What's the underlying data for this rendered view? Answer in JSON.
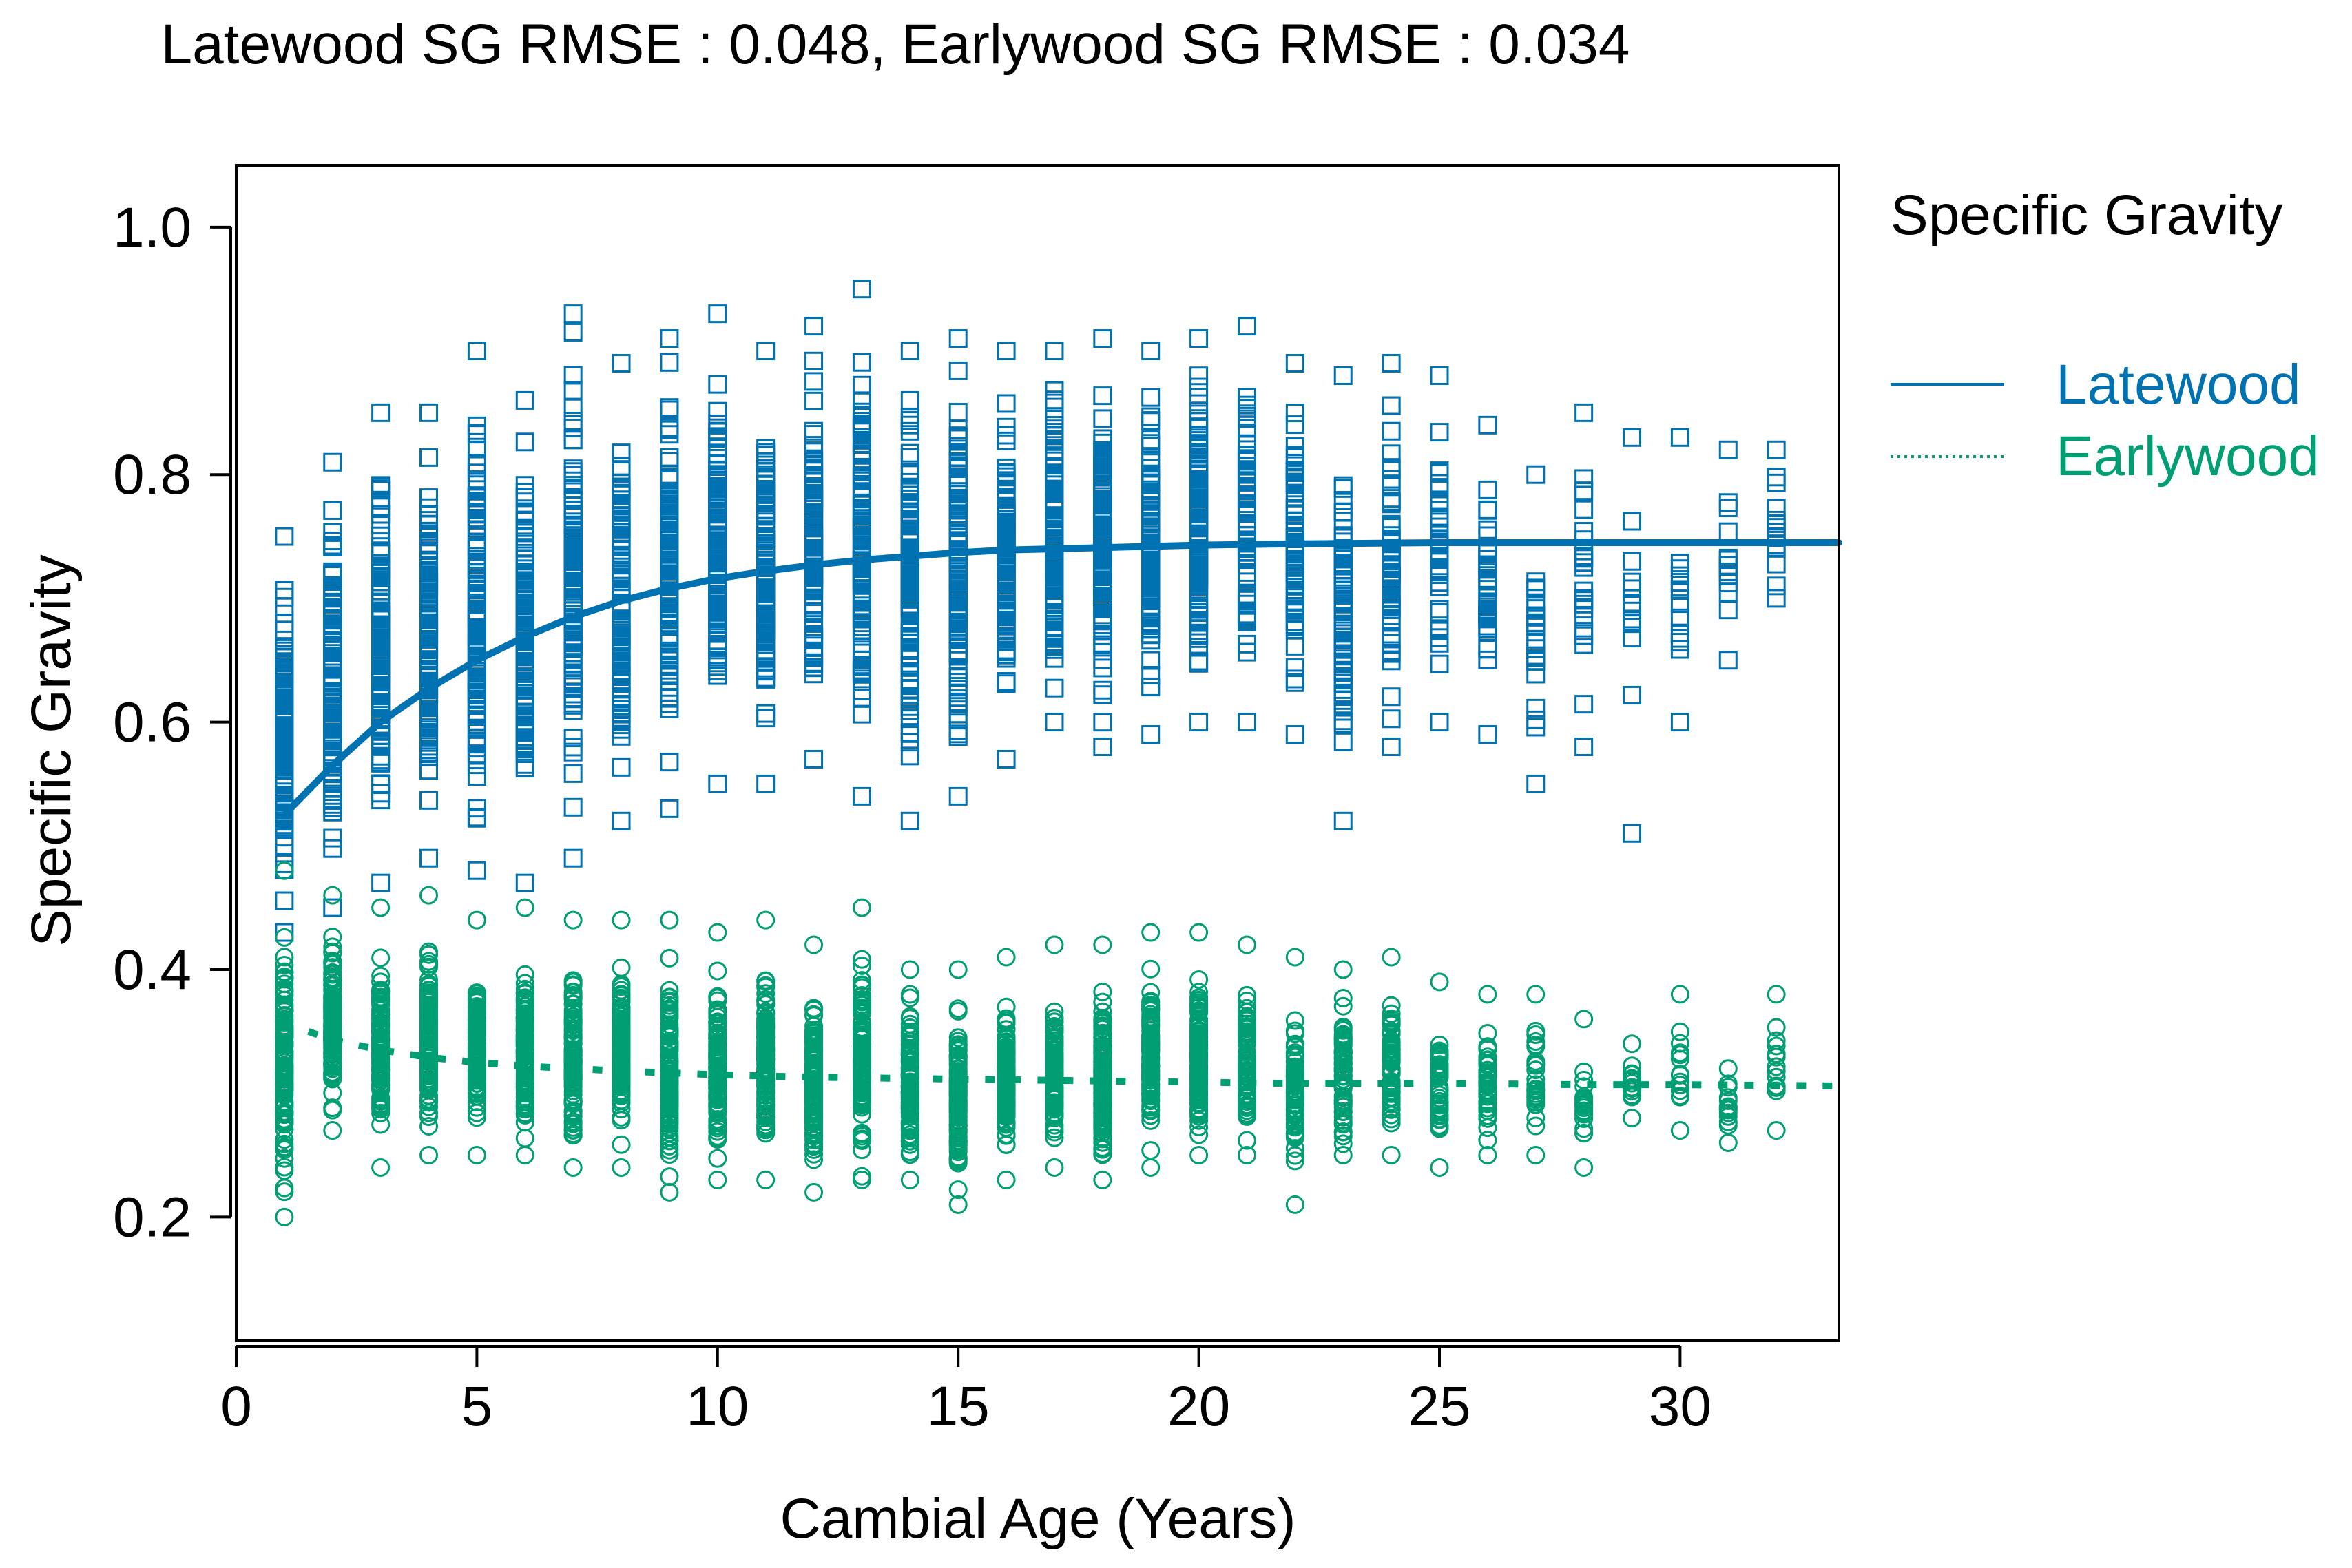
{
  "chart_data": {
    "type": "scatter",
    "title": "Latewood SG RMSE : 0.048, Earlywood SG RMSE : 0.034",
    "xlabel": "Cambial Age (Years)",
    "ylabel": "Specific Gravity",
    "xlim": [
      0,
      33.3
    ],
    "ylim": [
      0.1,
      1.05
    ],
    "xticks": [
      0,
      5,
      10,
      15,
      20,
      25,
      30
    ],
    "yticks": [
      0.2,
      0.4,
      0.6,
      0.8,
      1.0
    ],
    "ytick_labels": [
      "0.2",
      "0.4",
      "0.6",
      "0.8",
      "1.0"
    ],
    "grid": false,
    "legend": {
      "title": "Specific Gravity",
      "placement": "right-outside-top",
      "entries": [
        {
          "name": "Latewood",
          "line": "solid",
          "color": "#0072B2"
        },
        {
          "name": "Earlywood",
          "line": "dotted",
          "color": "#009E73"
        }
      ]
    },
    "colors": {
      "latewood": "#0072B2",
      "earlywood": "#009E73"
    },
    "ages": [
      1,
      2,
      3,
      4,
      5,
      6,
      7,
      8,
      9,
      10,
      11,
      12,
      13,
      14,
      15,
      16,
      17,
      18,
      19,
      20,
      21,
      22,
      23,
      24,
      25,
      26,
      27,
      28,
      29,
      30,
      31,
      32
    ],
    "series": [
      {
        "name": "Latewood",
        "marker": "square",
        "color": "#0072B2",
        "min": [
          0.43,
          0.45,
          0.47,
          0.49,
          0.48,
          0.47,
          0.49,
          0.52,
          0.53,
          0.55,
          0.55,
          0.57,
          0.54,
          0.52,
          0.54,
          0.57,
          0.6,
          0.58,
          0.59,
          0.6,
          0.6,
          0.59,
          0.52,
          0.58,
          0.6,
          0.59,
          0.55,
          0.58,
          0.51,
          0.6,
          0.65,
          0.7
        ],
        "max": [
          0.75,
          0.81,
          0.85,
          0.85,
          0.9,
          0.86,
          0.93,
          0.89,
          0.91,
          0.93,
          0.9,
          0.92,
          0.95,
          0.9,
          0.91,
          0.9,
          0.9,
          0.91,
          0.9,
          0.91,
          0.92,
          0.89,
          0.88,
          0.89,
          0.88,
          0.84,
          0.8,
          0.85,
          0.83,
          0.83,
          0.82,
          0.82
        ],
        "fit": {
          "x": [
            1,
            2,
            3,
            4,
            5,
            6,
            7,
            8,
            9,
            10,
            11,
            12,
            13,
            14,
            15,
            16,
            17,
            18,
            20,
            22,
            25,
            28,
            30,
            33.3
          ],
          "y": [
            0.525,
            0.565,
            0.6,
            0.627,
            0.65,
            0.669,
            0.685,
            0.698,
            0.708,
            0.716,
            0.722,
            0.727,
            0.731,
            0.734,
            0.737,
            0.739,
            0.74,
            0.741,
            0.743,
            0.744,
            0.745,
            0.745,
            0.745,
            0.745
          ]
        }
      },
      {
        "name": "Earlywood",
        "marker": "circle",
        "color": "#009E73",
        "min": [
          0.2,
          0.27,
          0.24,
          0.25,
          0.25,
          0.25,
          0.24,
          0.24,
          0.22,
          0.23,
          0.23,
          0.22,
          0.23,
          0.23,
          0.21,
          0.23,
          0.24,
          0.23,
          0.24,
          0.25,
          0.25,
          0.21,
          0.25,
          0.25,
          0.24,
          0.25,
          0.25,
          0.24,
          0.28,
          0.27,
          0.26,
          0.27
        ],
        "max": [
          0.48,
          0.46,
          0.45,
          0.46,
          0.44,
          0.45,
          0.44,
          0.44,
          0.44,
          0.43,
          0.44,
          0.42,
          0.45,
          0.4,
          0.4,
          0.41,
          0.42,
          0.42,
          0.43,
          0.43,
          0.42,
          0.41,
          0.4,
          0.41,
          0.39,
          0.38,
          0.38,
          0.36,
          0.34,
          0.38,
          0.32,
          0.38
        ],
        "fit": {
          "x": [
            1.5,
            2,
            3,
            4,
            5,
            6,
            8,
            10,
            12,
            14,
            16,
            18,
            20,
            22,
            25,
            28,
            30,
            33.3
          ],
          "y": [
            0.35,
            0.343,
            0.335,
            0.329,
            0.325,
            0.322,
            0.318,
            0.315,
            0.313,
            0.312,
            0.311,
            0.31,
            0.309,
            0.308,
            0.308,
            0.307,
            0.307,
            0.306
          ]
        }
      }
    ]
  }
}
